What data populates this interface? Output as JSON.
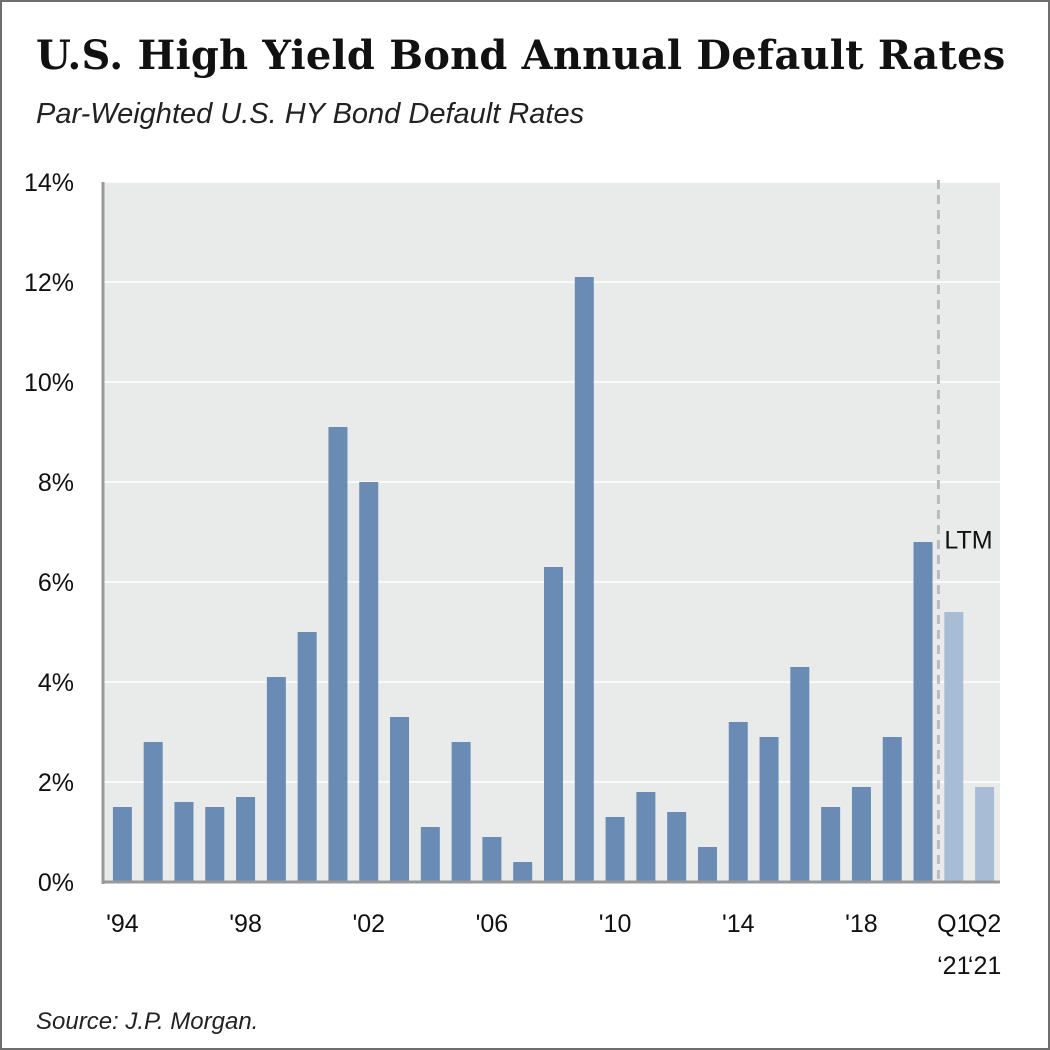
{
  "title": "U.S. High Yield Bond Annual Default Rates",
  "subtitle": "Par-Weighted U.S. HY Bond Default Rates",
  "source": "Source: J.P. Morgan.",
  "colors": {
    "plot_background": "#e9eaea",
    "gridline": "#ffffff",
    "bar_annual": "#6a8bb4",
    "bar_ltm": "#a9bcd6",
    "ltm_divider": "#bbbbbb",
    "axis": "#999999"
  },
  "chart_data": {
    "type": "bar",
    "title": "U.S. High Yield Bond Annual Default Rates",
    "subtitle": "Par-Weighted U.S. HY Bond Default Rates",
    "xlabel": "",
    "ylabel": "",
    "ylim": [
      0,
      14
    ],
    "y_ticks": [
      "0%",
      "2%",
      "4%",
      "6%",
      "8%",
      "10%",
      "12%",
      "14%"
    ],
    "grid": true,
    "categories": [
      "1994",
      "1995",
      "1996",
      "1997",
      "1998",
      "1999",
      "2000",
      "2001",
      "2002",
      "2003",
      "2004",
      "2005",
      "2006",
      "2007",
      "2008",
      "2009",
      "2010",
      "2011",
      "2012",
      "2013",
      "2014",
      "2015",
      "2016",
      "2017",
      "2018",
      "2019",
      "2020",
      "Q1 '21",
      "Q2 '21"
    ],
    "values": [
      1.5,
      2.8,
      1.6,
      1.5,
      1.7,
      4.1,
      5.0,
      9.1,
      8.0,
      3.3,
      1.1,
      2.8,
      0.9,
      0.4,
      6.3,
      12.1,
      1.3,
      1.8,
      1.4,
      0.7,
      3.2,
      2.9,
      4.3,
      1.5,
      1.9,
      2.9,
      6.8,
      5.4,
      1.9
    ],
    "ltm_categories": [
      "Q1 '21",
      "Q2 '21"
    ],
    "x_tick_labels": [
      {
        "category": "1994",
        "lines": [
          "'94"
        ]
      },
      {
        "category": "1998",
        "lines": [
          "'98"
        ]
      },
      {
        "category": "2002",
        "lines": [
          "'02"
        ]
      },
      {
        "category": "2006",
        "lines": [
          "'06"
        ]
      },
      {
        "category": "2010",
        "lines": [
          "'10"
        ]
      },
      {
        "category": "2014",
        "lines": [
          "'14"
        ]
      },
      {
        "category": "2018",
        "lines": [
          "'18"
        ]
      },
      {
        "category": "Q1 '21",
        "lines": [
          "Q1",
          "‘21"
        ]
      },
      {
        "category": "Q2 '21",
        "lines": [
          "Q2",
          "‘21"
        ]
      }
    ],
    "annotations": [
      {
        "text": "LTM",
        "category": "Q1 '21"
      }
    ]
  }
}
